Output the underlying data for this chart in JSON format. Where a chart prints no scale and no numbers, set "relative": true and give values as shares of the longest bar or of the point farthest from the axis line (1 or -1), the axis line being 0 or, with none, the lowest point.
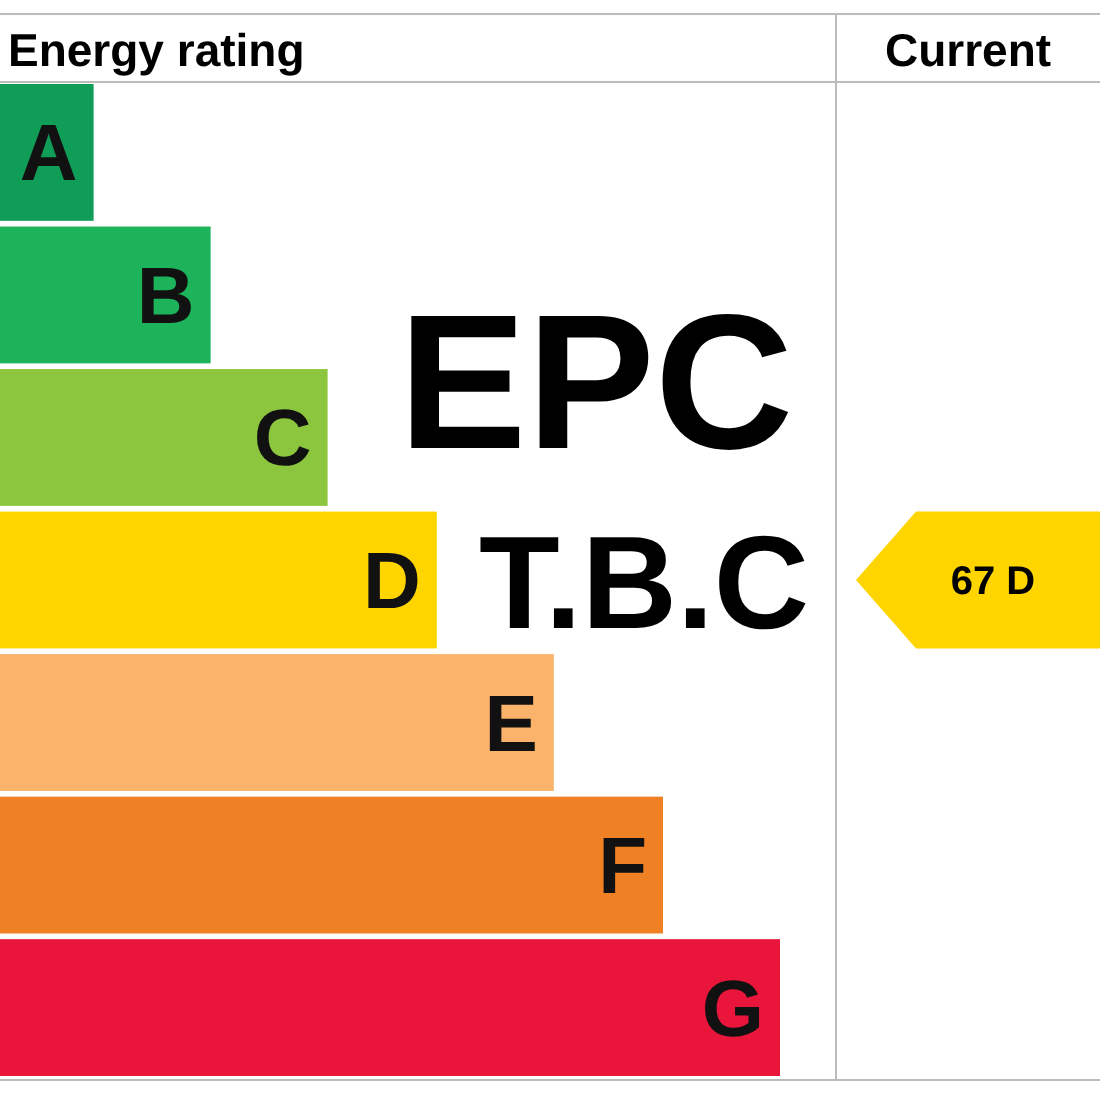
{
  "chart_data": {
    "type": "bar",
    "orientation": "horizontal",
    "relative": true,
    "title": "Energy rating",
    "categories": [
      "A",
      "B",
      "C",
      "D",
      "E",
      "F",
      "G"
    ],
    "values": [
      0.12,
      0.27,
      0.42,
      0.56,
      0.71,
      0.85,
      1
    ],
    "colors": [
      "#0f9d58",
      "#1cb35a",
      "#8cc63f",
      "#ffd500",
      "#fbb36b",
      "#f08024",
      "#e9153b"
    ],
    "annotations": [
      "Current",
      "EPC",
      "T.B.C",
      "67 D"
    ]
  }
}
